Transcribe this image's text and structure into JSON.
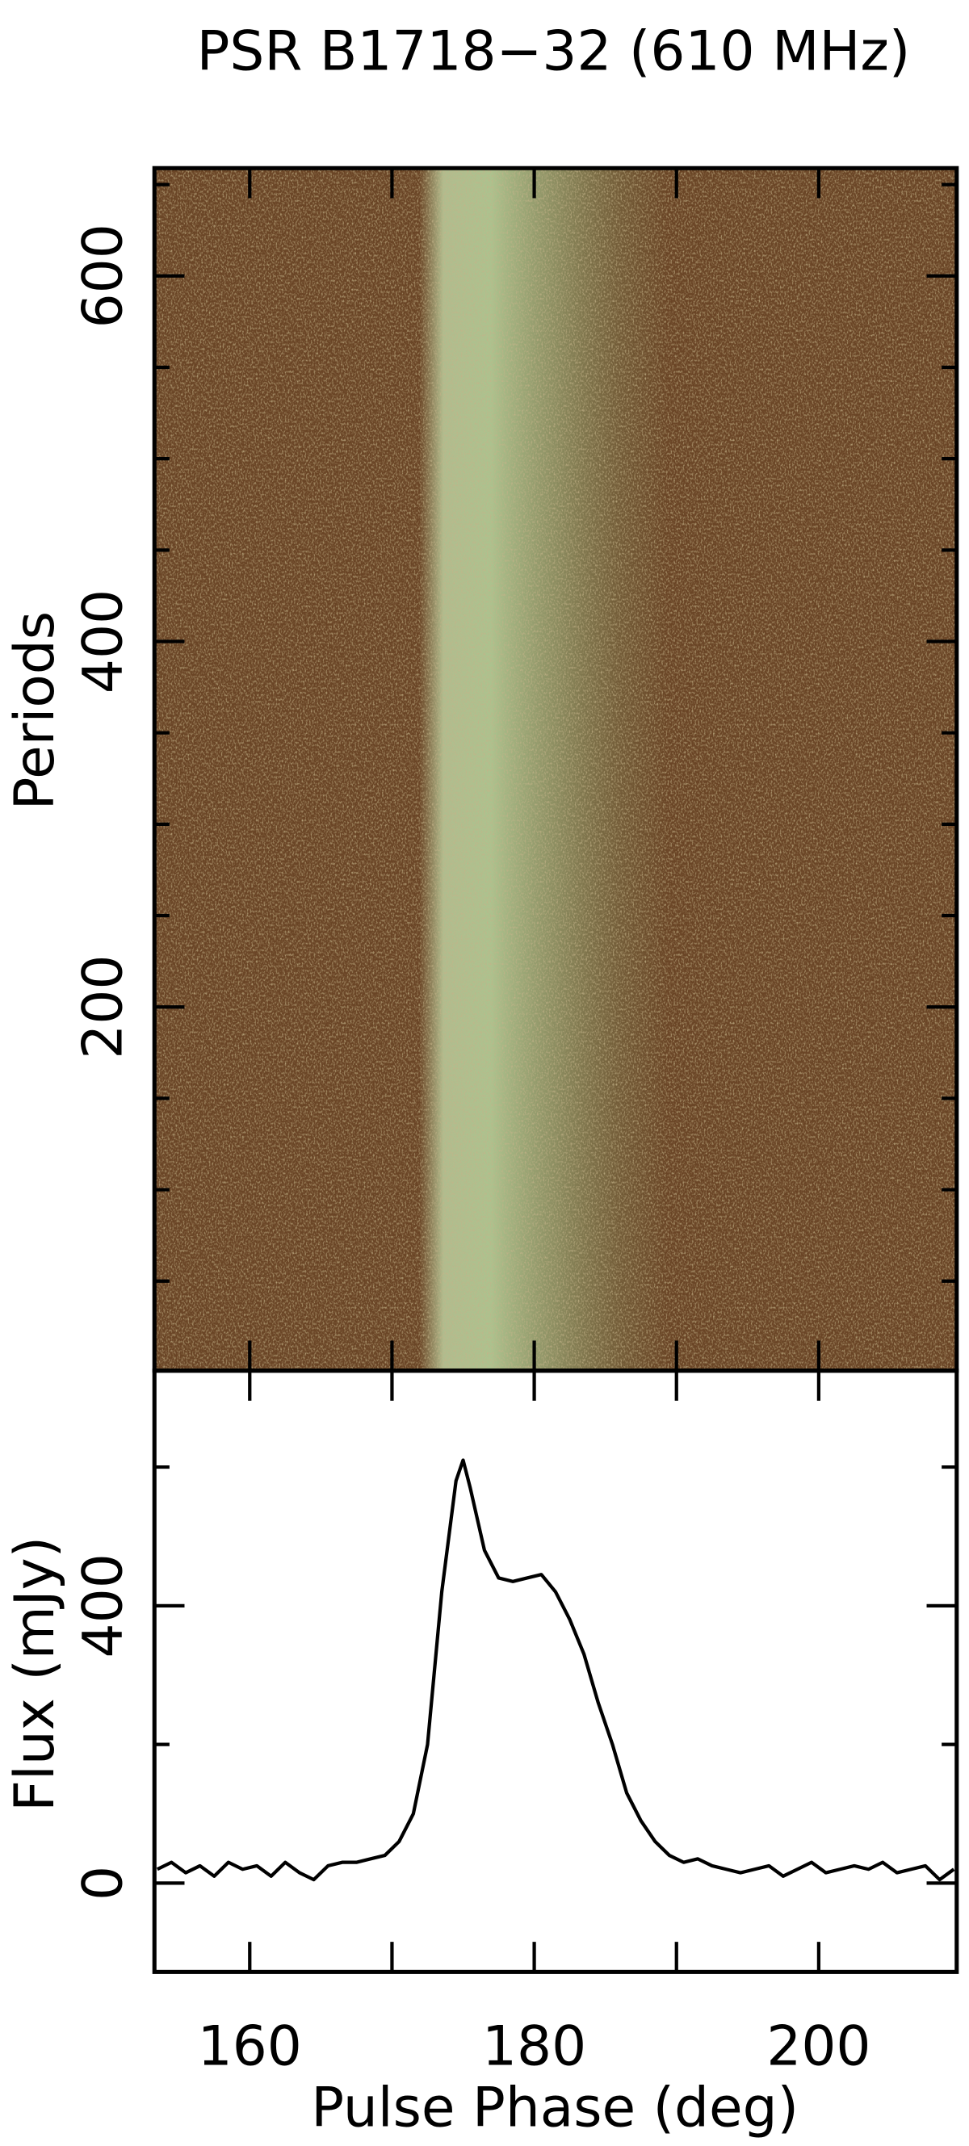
{
  "chart_data": [
    {
      "type": "heatmap",
      "title": "PSR B1718−32 (610 MHz)",
      "ylabel": "Periods",
      "xlim": [
        153.3,
        209.7
      ],
      "xticks": [
        160,
        180,
        200
      ],
      "minor_xticks": [
        170,
        190
      ],
      "ylim": [
        1,
        659
      ],
      "yticks": [
        200,
        400,
        600
      ],
      "minor_yticks": [
        50,
        100,
        150,
        250,
        300,
        350,
        450,
        500,
        550,
        650
      ]
    },
    {
      "type": "line",
      "xlabel": "Pulse Phase (deg)",
      "ylabel": "Flux (mJy)",
      "color": "#000000",
      "xlim": [
        153.3,
        209.7
      ],
      "xticks": [
        160,
        180,
        200
      ],
      "minor_xticks": [
        170,
        190
      ],
      "ylim": [
        -128,
        739
      ],
      "yticks": [
        0,
        400
      ],
      "minor_yticks": [
        200,
        600
      ],
      "x": [
        153.5,
        154.5,
        155.5,
        156.5,
        157.5,
        158.5,
        159.5,
        160.5,
        161.5,
        162.5,
        163.5,
        164.5,
        165.5,
        166.5,
        167.5,
        168.5,
        169.5,
        170.5,
        171.5,
        172.5,
        173.5,
        174.5,
        175,
        175.5,
        176.5,
        177.5,
        178.5,
        179.5,
        180.5,
        181.5,
        182.5,
        183.5,
        184.5,
        185.5,
        186.5,
        187.5,
        188.5,
        189.5,
        190.5,
        191.5,
        192.5,
        193.5,
        194.5,
        195.5,
        196.5,
        197.5,
        198.5,
        199.5,
        200.5,
        201.5,
        202.5,
        203.5,
        204.5,
        205.5,
        206.5,
        207.5,
        208.5,
        209.5
      ],
      "values": [
        20,
        30,
        15,
        25,
        10,
        30,
        20,
        25,
        10,
        30,
        15,
        5,
        25,
        30,
        30,
        35,
        40,
        60,
        100,
        200,
        420,
        580,
        610,
        570,
        480,
        440,
        435,
        440,
        445,
        420,
        380,
        330,
        260,
        200,
        130,
        90,
        60,
        40,
        30,
        35,
        25,
        20,
        15,
        20,
        25,
        10,
        20,
        30,
        15,
        20,
        25,
        20,
        30,
        15,
        20,
        25,
        5,
        20
      ]
    }
  ]
}
